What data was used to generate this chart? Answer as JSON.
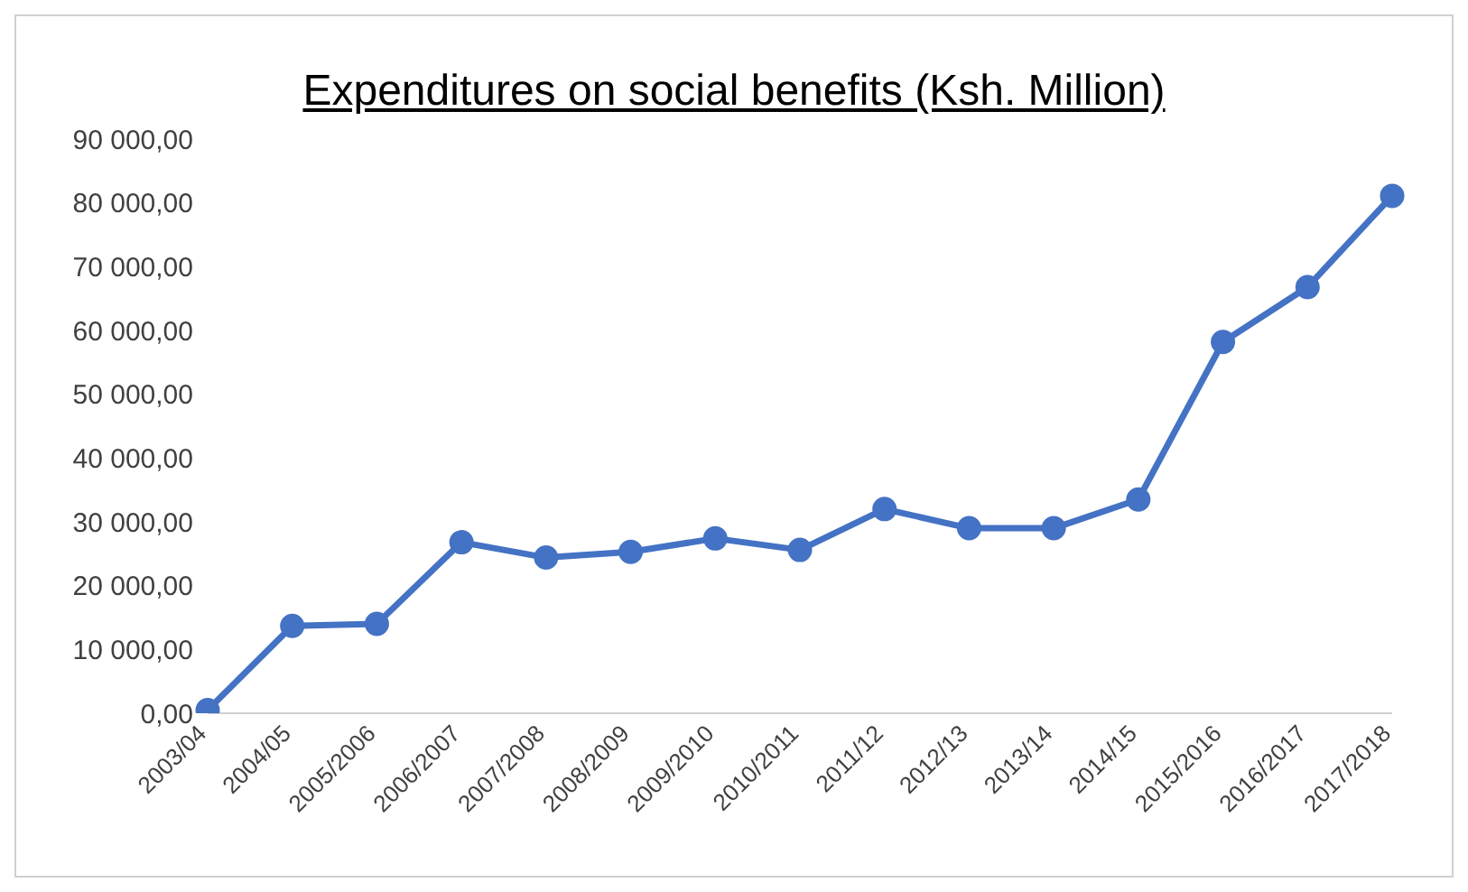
{
  "chart_data": {
    "type": "line",
    "title": "Expenditures on social benefits (Ksh. Million)",
    "categories": [
      "2003/04",
      "2004/05",
      "2005/2006",
      "2006/2007",
      "2007/2008",
      "2008/2009",
      "2009/2010",
      "2010/2011",
      "2011/12",
      "2012/13",
      "2013/14",
      "2014/15",
      "2015/2016",
      "2016/2017",
      "2017/2018"
    ],
    "series": [
      {
        "color": "#4472c4",
        "values": [
          500,
          13700,
          14000,
          26800,
          24400,
          25300,
          27400,
          25600,
          32000,
          29000,
          29000,
          33500,
          58200,
          66800,
          81100
        ]
      }
    ],
    "ylim": [
      0,
      90000
    ],
    "yticks": [
      {
        "value": 0,
        "label": "0,00"
      },
      {
        "value": 10000,
        "label": "10 000,00"
      },
      {
        "value": 20000,
        "label": "20 000,00"
      },
      {
        "value": 30000,
        "label": "30 000,00"
      },
      {
        "value": 40000,
        "label": "40 000,00"
      },
      {
        "value": 50000,
        "label": "50 000,00"
      },
      {
        "value": 60000,
        "label": "60 000,00"
      },
      {
        "value": 70000,
        "label": "70 000,00"
      },
      {
        "value": 80000,
        "label": "80 000,00"
      },
      {
        "value": 90000,
        "label": "90 000,00"
      }
    ],
    "grid": false,
    "legend": false,
    "marker": "circle",
    "line_style": "solid"
  }
}
